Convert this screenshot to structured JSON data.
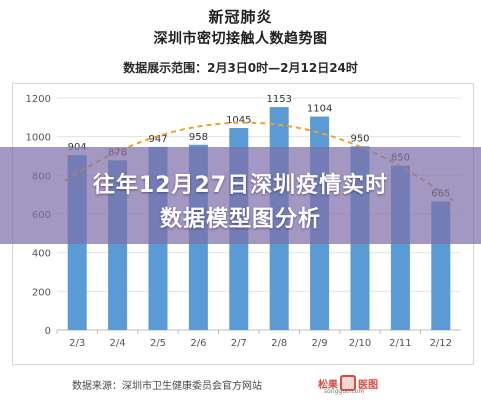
{
  "header": {
    "line1": "新冠肺炎",
    "line2": "深圳市密切接触人数趋势图",
    "line3": "数据展示范围：2月3日0时—2月12日24时"
  },
  "overlay": {
    "line1": "往年12月27日深圳疫情实时",
    "line2": "数据模型图分析"
  },
  "footer": {
    "source": "数据来源：深圳市卫生健康委员会官方网站",
    "brand_left": "松果",
    "brand_right": "医图",
    "brand_sub": "songguo.com"
  },
  "chart_data": {
    "type": "bar",
    "categories": [
      "2/3",
      "2/4",
      "2/5",
      "2/6",
      "2/7",
      "2/8",
      "2/9",
      "2/10",
      "2/11",
      "2/12"
    ],
    "values": [
      904,
      878,
      947,
      958,
      1045,
      1153,
      1104,
      950,
      850,
      665
    ],
    "ylim": [
      0,
      1200
    ],
    "yticks": [
      0,
      200,
      400,
      600,
      800,
      1000,
      1200
    ],
    "grid": true,
    "trendline": "dashed",
    "bar_color": "#5b9bd5",
    "trend_color": "#f0a030"
  }
}
